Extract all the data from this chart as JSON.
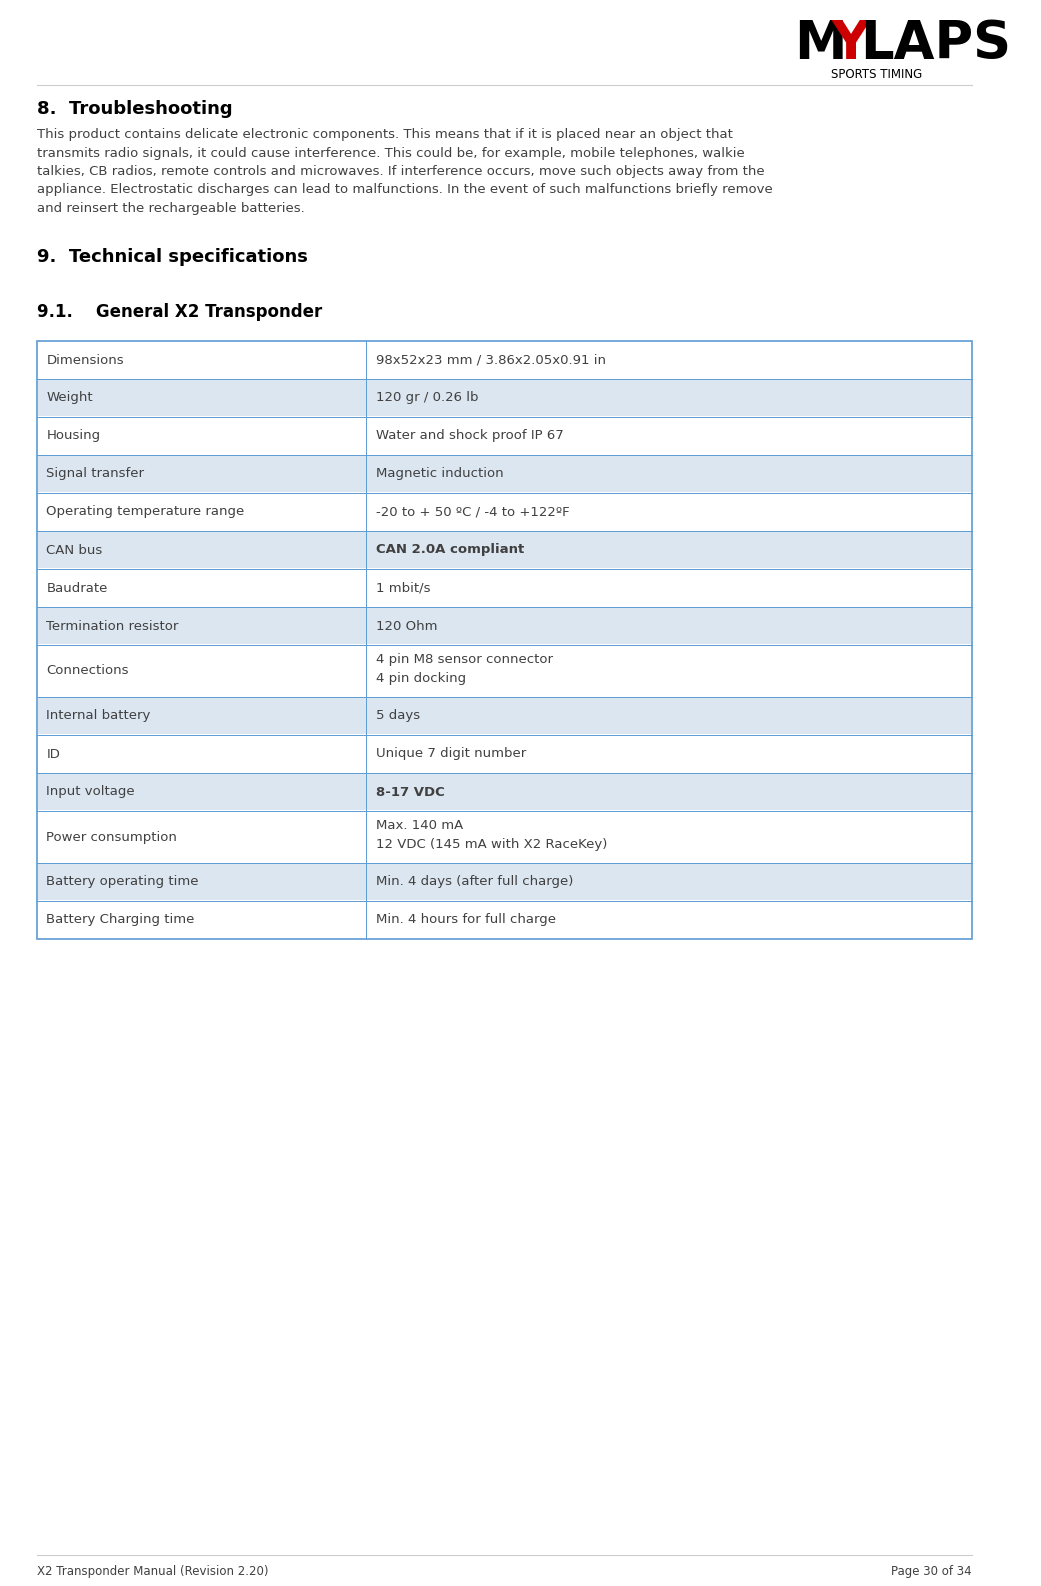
{
  "page_bg": "#ffffff",
  "section8_title": "8.  Troubleshooting",
  "section8_body": "This product contains delicate electronic components. This means that if it is placed near an object that\ntransmits radio signals, it could cause interference. This could be, for example, mobile telephones, walkie\ntalkies, CB radios, remote controls and microwaves. If interference occurs, move such objects away from the\nappliance. Electrostatic discharges can lead to malfunctions. In the event of such malfunctions briefly remove\nand reinsert the rechargeable batteries.",
  "section9_title": "9.  Technical specifications",
  "section91_title": "9.1.    General X2 Transponder",
  "table_rows": [
    {
      "label": "Dimensions",
      "value": "98x52x23 mm / 3.86x2.05x0.91 in",
      "bold_value": false,
      "shaded": false
    },
    {
      "label": "Weight",
      "value": "120 gr / 0.26 lb",
      "bold_value": false,
      "shaded": true
    },
    {
      "label": "Housing",
      "value": "Water and shock proof IP 67",
      "bold_value": false,
      "shaded": false
    },
    {
      "label": "Signal transfer",
      "value": "Magnetic induction",
      "bold_value": false,
      "shaded": true
    },
    {
      "label": "Operating temperature range",
      "value": "-20 to + 50 ºC / -4 to +122ºF",
      "bold_value": false,
      "shaded": false
    },
    {
      "label": "CAN bus",
      "value": "CAN 2.0A compliant",
      "bold_value": true,
      "shaded": true
    },
    {
      "label": "Baudrate",
      "value": "1 mbit/s",
      "bold_value": false,
      "shaded": false
    },
    {
      "label": "Termination resistor",
      "value": "120 Ohm",
      "bold_value": false,
      "shaded": true
    },
    {
      "label": "Connections",
      "value": "4 pin M8 sensor connector\n4 pin docking",
      "bold_value": false,
      "shaded": false
    },
    {
      "label": "Internal battery",
      "value": "5 days",
      "bold_value": false,
      "shaded": true
    },
    {
      "label": "ID",
      "value": "Unique 7 digit number",
      "bold_value": false,
      "shaded": false
    },
    {
      "label": "Input voltage",
      "value": "8-17 VDC",
      "bold_value": true,
      "shaded": true
    },
    {
      "label": "Power consumption",
      "value": "Max. 140 mA\n12 VDC (145 mA with X2 RaceKey)",
      "bold_value": false,
      "shaded": false
    },
    {
      "label": "Battery operating time",
      "value": "Min. 4 days (after full charge)",
      "bold_value": false,
      "shaded": true
    },
    {
      "label": "Battery Charging time",
      "value": "Min. 4 hours for full charge",
      "bold_value": false,
      "shaded": false
    }
  ],
  "footer_left": "X2 Transponder Manual (Revision 2.20)",
  "footer_right": "Page 30 of 34",
  "shaded_color": "#dce6f1",
  "table_border_color": "#5b9bd5",
  "text_color": "#404040",
  "title_color": "#000000"
}
